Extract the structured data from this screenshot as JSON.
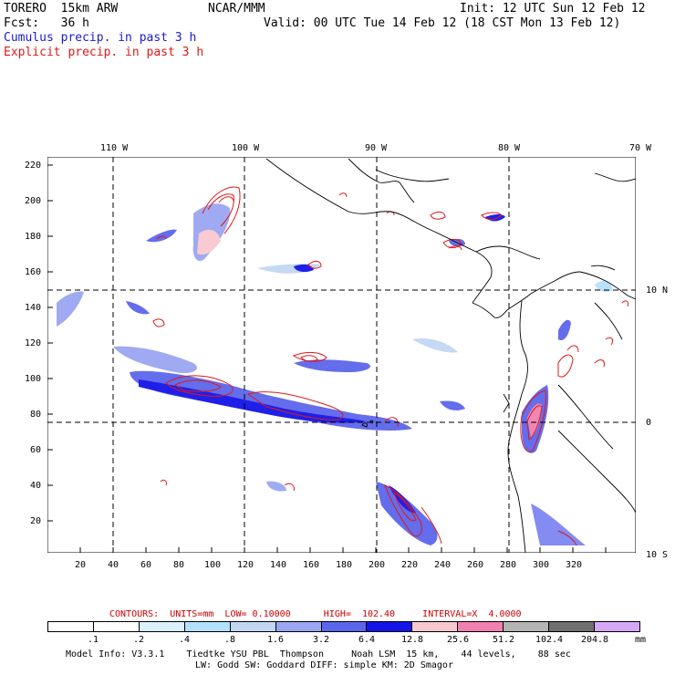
{
  "header": {
    "model": "TORERO  15km ARW",
    "org": "NCAR/MMM",
    "init": "Init: 12 UTC Sun 12 Feb 12",
    "forecast": "Fcst:   36 h",
    "valid": "Valid: 00 UTC Tue 14 Feb 12 (18 CST Mon 13 Feb 12)",
    "field_cumulus": "Cumulus precip. in past 3 h",
    "field_explicit": "Explicit precip. in past 3 h"
  },
  "axes": {
    "top_lon_labels": [
      "110 W",
      "100 W",
      "90 W",
      "80 W",
      "70 W"
    ],
    "right_lat_labels": [
      "10 N",
      "0",
      "10 S"
    ],
    "left_y_ticks": [
      "220",
      "200",
      "180",
      "160",
      "140",
      "120",
      "100",
      "80",
      "60",
      "40",
      "20"
    ],
    "bottom_x_ticks": [
      "20",
      "40",
      "60",
      "80",
      "100",
      "120",
      "140",
      "160",
      "180",
      "200",
      "220",
      "240",
      "260",
      "280",
      "300",
      "320"
    ]
  },
  "contours_info": {
    "label": "CONTOURS:  UNITS=mm  LOW= 0.10000      HIGH=  102.40     INTERVAL=X  4.0000"
  },
  "legend": {
    "unit": "mm",
    "ticks": [
      ".1",
      ".2",
      ".4",
      ".8",
      "1.6",
      "3.2",
      "6.4",
      "12.8",
      "25.6",
      "51.2",
      "102.4",
      "204.8"
    ],
    "colors": [
      "#ffffff",
      "#ffffff",
      "#dcefff",
      "#b4e0ff",
      "#c2d6f4",
      "#9aa6f2",
      "#5c66ec",
      "#1414e8",
      "#f8c8d0",
      "#f080b0",
      "#b4b4b4",
      "#707070",
      "#d8a8f8"
    ]
  },
  "model_info": {
    "line1": "Model Info: V3.3.1    Tiedtke YSU PBL  Thompson     Noah LSM  15 km,    44 levels,    88 sec",
    "line2": "LW: Godd SW: Goddard DIFF: simple KM: 2D Smagor"
  }
}
